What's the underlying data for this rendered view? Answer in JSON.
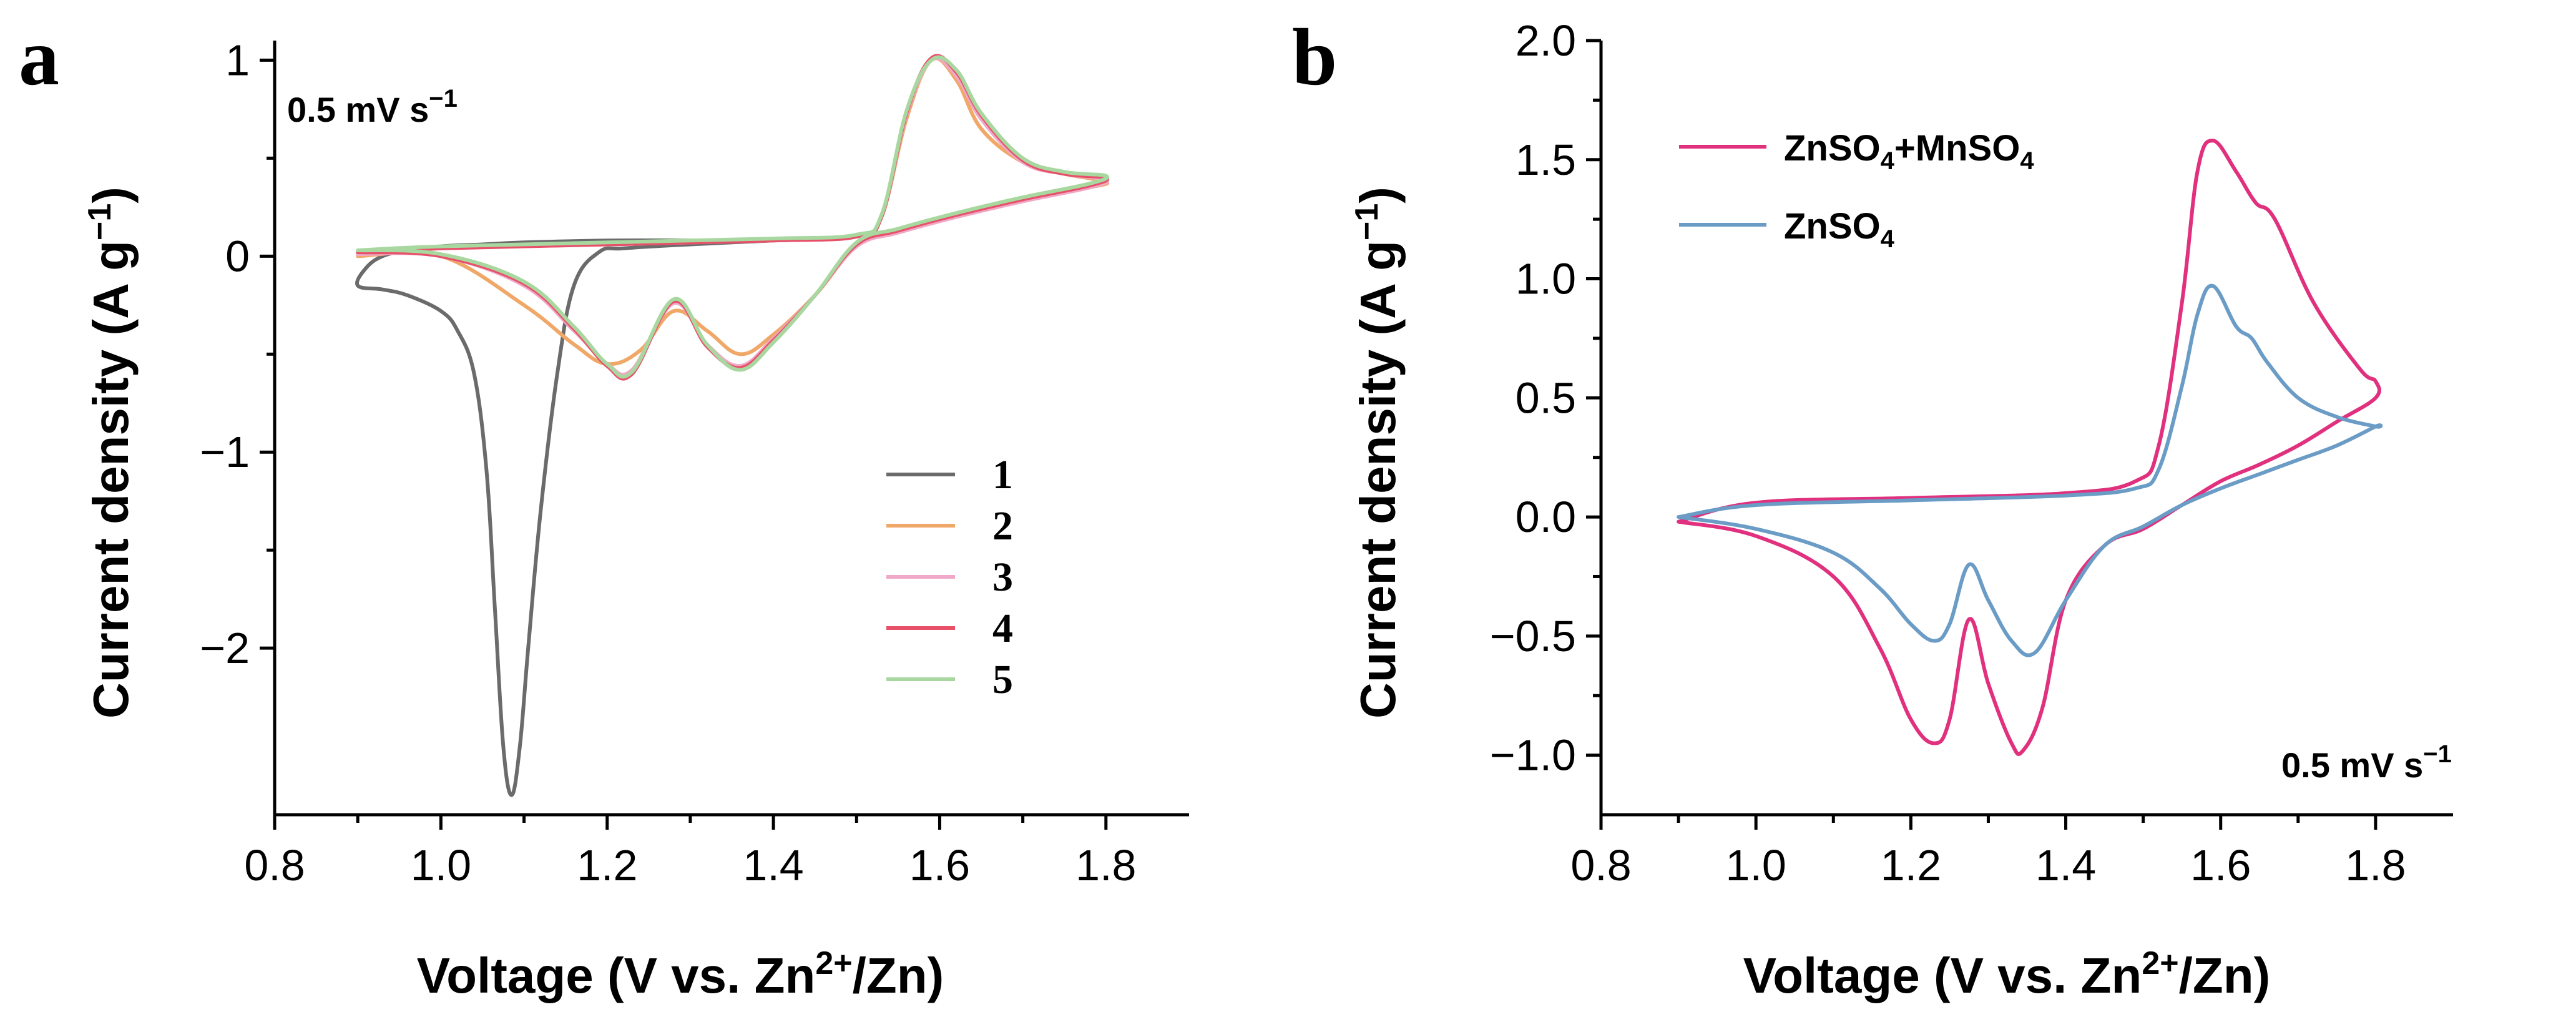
{
  "panels": {
    "a": {
      "letter": "a",
      "ylabel": "Current density (A g",
      "ylabel_sup": "−1",
      "ylabel_end": ")",
      "xlabel_pre": "Voltage (V vs. Zn",
      "xlabel_sup": "2+",
      "xlabel_post": "/Zn)",
      "annotation": "0.5 mV s",
      "annotation_sup": "−1"
    },
    "b": {
      "letter": "b",
      "ylabel": "Current density (A g",
      "ylabel_sup": "−1",
      "ylabel_end": ")",
      "xlabel_pre": "Voltage (V vs. Zn",
      "xlabel_sup": "2+",
      "xlabel_post": "/Zn)",
      "annotation": "0.5 mV s",
      "annotation_sup": "−1"
    }
  },
  "chart_data": [
    {
      "type": "line",
      "xlim": [
        0.8,
        1.9
      ],
      "ylim": [
        -2.85,
        1.1
      ],
      "xticks": [
        0.8,
        1.0,
        1.2,
        1.4,
        1.6,
        1.8
      ],
      "xtick_labels": [
        "0.8",
        "1.0",
        "1.2",
        "1.4",
        "1.6",
        "1.8"
      ],
      "yticks": [
        1,
        0,
        -1,
        -2
      ],
      "ytick_labels": [
        "1",
        "0",
        "−1",
        "−2"
      ],
      "legend_position": "bottom-right",
      "series": [
        {
          "name": "1",
          "color": "#6b6b6b",
          "x": [
            1.4,
            1.3,
            1.22,
            1.19,
            1.16,
            1.14,
            1.12,
            1.105,
            1.095,
            1.085,
            1.075,
            1.065,
            1.055,
            1.04,
            1.02,
            1.0,
            0.96,
            0.93,
            0.9,
            0.91,
            0.93,
            0.96,
            1.0,
            1.05,
            1.1,
            1.2,
            1.3,
            1.4
          ],
          "y": [
            0.08,
            0.06,
            0.04,
            0.02,
            -0.15,
            -0.6,
            -1.3,
            -2.0,
            -2.5,
            -2.75,
            -2.5,
            -1.8,
            -1.1,
            -0.6,
            -0.38,
            -0.28,
            -0.2,
            -0.17,
            -0.15,
            -0.06,
            0.0,
            0.03,
            0.05,
            0.06,
            0.07,
            0.08,
            0.08,
            0.08
          ]
        },
        {
          "name": "2",
          "color": "#f0a868",
          "x": [
            0.9,
            1.0,
            1.1,
            1.16,
            1.2,
            1.24,
            1.28,
            1.32,
            1.36,
            1.4,
            1.45,
            1.5,
            1.55,
            1.62,
            1.7,
            1.78,
            1.8,
            1.75,
            1.7,
            1.65,
            1.62,
            1.59,
            1.56,
            1.53,
            1.5,
            1.4,
            1.2,
            1.0,
            0.9
          ],
          "y": [
            0.0,
            0.0,
            -0.25,
            -0.45,
            -0.55,
            -0.48,
            -0.28,
            -0.38,
            -0.5,
            -0.4,
            -0.2,
            0.05,
            0.12,
            0.2,
            0.28,
            0.35,
            0.38,
            0.42,
            0.48,
            0.65,
            0.9,
            1.0,
            0.7,
            0.2,
            0.1,
            0.08,
            0.06,
            0.04,
            0.0
          ]
        },
        {
          "name": "3",
          "color": "#f0a8c8",
          "x": [
            0.9,
            1.0,
            1.1,
            1.16,
            1.2,
            1.23,
            1.28,
            1.32,
            1.36,
            1.4,
            1.45,
            1.5,
            1.55,
            1.62,
            1.7,
            1.78,
            1.8,
            1.75,
            1.7,
            1.65,
            1.62,
            1.59,
            1.56,
            1.53,
            1.5,
            1.4,
            1.2,
            1.0,
            0.9
          ],
          "y": [
            0.01,
            0.0,
            -0.15,
            -0.38,
            -0.55,
            -0.58,
            -0.24,
            -0.45,
            -0.56,
            -0.42,
            -0.2,
            0.05,
            0.12,
            0.2,
            0.28,
            0.35,
            0.39,
            0.42,
            0.48,
            0.7,
            0.92,
            1.0,
            0.72,
            0.2,
            0.1,
            0.08,
            0.06,
            0.04,
            0.01
          ]
        },
        {
          "name": "4",
          "color": "#e8506a",
          "x": [
            0.9,
            1.0,
            1.1,
            1.16,
            1.2,
            1.23,
            1.28,
            1.32,
            1.36,
            1.4,
            1.45,
            1.5,
            1.55,
            1.62,
            1.7,
            1.78,
            1.8,
            1.75,
            1.7,
            1.65,
            1.62,
            1.59,
            1.56,
            1.53,
            1.5,
            1.4,
            1.2,
            1.0,
            0.9
          ],
          "y": [
            0.02,
            0.0,
            -0.14,
            -0.37,
            -0.56,
            -0.6,
            -0.23,
            -0.46,
            -0.57,
            -0.43,
            -0.2,
            0.06,
            0.13,
            0.21,
            0.29,
            0.36,
            0.4,
            0.42,
            0.49,
            0.72,
            0.94,
            1.01,
            0.73,
            0.2,
            0.1,
            0.08,
            0.06,
            0.04,
            0.02
          ]
        },
        {
          "name": "5",
          "color": "#a8d8a0",
          "x": [
            0.9,
            1.0,
            1.1,
            1.16,
            1.2,
            1.23,
            1.28,
            1.32,
            1.36,
            1.4,
            1.45,
            1.5,
            1.55,
            1.62,
            1.7,
            1.78,
            1.8,
            1.75,
            1.7,
            1.65,
            1.62,
            1.59,
            1.56,
            1.53,
            1.5,
            1.4,
            1.2,
            1.0,
            0.9
          ],
          "y": [
            0.03,
            0.01,
            -0.13,
            -0.36,
            -0.55,
            -0.59,
            -0.22,
            -0.45,
            -0.58,
            -0.44,
            -0.2,
            0.07,
            0.14,
            0.22,
            0.3,
            0.37,
            0.41,
            0.43,
            0.5,
            0.73,
            0.95,
            1.0,
            0.74,
            0.21,
            0.11,
            0.09,
            0.07,
            0.05,
            0.03
          ]
        }
      ]
    },
    {
      "type": "line",
      "xlim": [
        0.8,
        1.9
      ],
      "ylim": [
        -1.25,
        2.0
      ],
      "xticks": [
        0.8,
        1.0,
        1.2,
        1.4,
        1.6,
        1.8
      ],
      "xtick_labels": [
        "0.8",
        "1.0",
        "1.2",
        "1.4",
        "1.6",
        "1.8"
      ],
      "yticks": [
        2.0,
        1.5,
        1.0,
        0.5,
        0.0,
        -0.5,
        -1.0
      ],
      "ytick_labels": [
        "2.0",
        "1.5",
        "1.0",
        "0.5",
        "0.0",
        "−0.5",
        "−1.0"
      ],
      "legend_position": "top-left",
      "series": [
        {
          "name": "ZnSO4+MnSO4",
          "legend_parts": [
            "ZnSO",
            "4",
            "+MnSO",
            "4"
          ],
          "color": "#e0307e",
          "x": [
            0.9,
            1.0,
            1.1,
            1.16,
            1.2,
            1.23,
            1.25,
            1.275,
            1.3,
            1.33,
            1.345,
            1.37,
            1.4,
            1.45,
            1.5,
            1.55,
            1.6,
            1.65,
            1.7,
            1.75,
            1.8,
            1.8,
            1.78,
            1.72,
            1.67,
            1.645,
            1.62,
            1.59,
            1.57,
            1.55,
            1.52,
            1.49,
            1.4,
            1.2,
            1.0,
            0.9
          ],
          "y": [
            -0.02,
            -0.08,
            -0.25,
            -0.55,
            -0.85,
            -0.95,
            -0.85,
            -0.43,
            -0.7,
            -0.95,
            -0.98,
            -0.8,
            -0.35,
            -0.12,
            -0.05,
            0.05,
            0.15,
            0.22,
            0.3,
            0.4,
            0.5,
            0.57,
            0.62,
            0.9,
            1.25,
            1.32,
            1.45,
            1.58,
            1.45,
            0.9,
            0.3,
            0.15,
            0.1,
            0.08,
            0.06,
            -0.02
          ]
        },
        {
          "name": "ZnSO4",
          "legend_parts": [
            "ZnSO",
            "4"
          ],
          "color": "#6a9cc6",
          "x": [
            0.9,
            1.0,
            1.1,
            1.16,
            1.2,
            1.23,
            1.25,
            1.275,
            1.3,
            1.33,
            1.36,
            1.4,
            1.45,
            1.5,
            1.55,
            1.6,
            1.65,
            1.7,
            1.75,
            1.8,
            1.8,
            1.75,
            1.7,
            1.66,
            1.64,
            1.62,
            1.59,
            1.57,
            1.55,
            1.52,
            1.49,
            1.4,
            1.2,
            1.0,
            0.9
          ],
          "y": [
            0.0,
            -0.05,
            -0.15,
            -0.3,
            -0.45,
            -0.52,
            -0.45,
            -0.2,
            -0.35,
            -0.52,
            -0.57,
            -0.35,
            -0.12,
            -0.04,
            0.05,
            0.12,
            0.18,
            0.24,
            0.3,
            0.38,
            0.38,
            0.42,
            0.5,
            0.65,
            0.75,
            0.8,
            0.97,
            0.85,
            0.55,
            0.2,
            0.12,
            0.09,
            0.07,
            0.05,
            0.0
          ]
        }
      ]
    }
  ]
}
